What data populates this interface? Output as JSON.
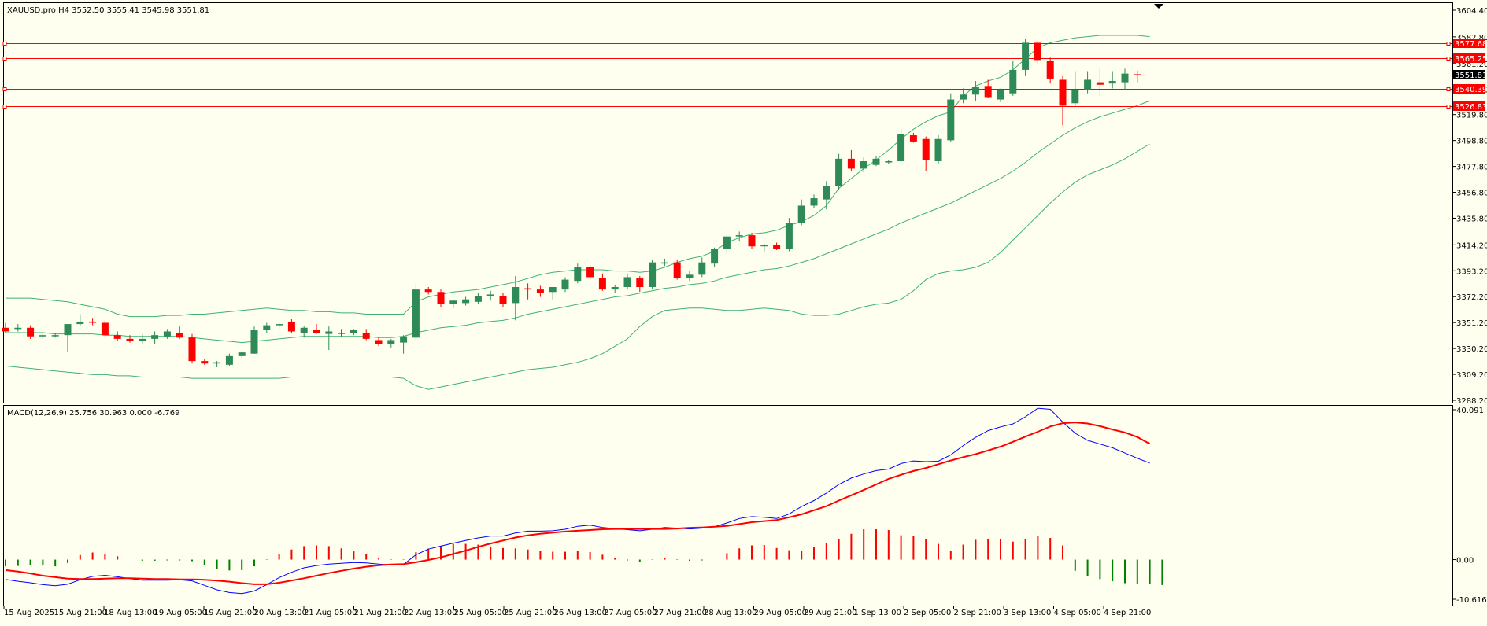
{
  "symbol_header": "XAUUSD.pro,H4  3552.50 3555.41 3545.98 3551.81",
  "macd_header": "MACD(12,26,9) 25.756 30.963 0.000 -6.769",
  "colors": {
    "background": "#fffff0",
    "bull_candle": "#2e8b57",
    "bear_candle": "#ff0000",
    "bollinger": "#3cb371",
    "hline": "#ff0000",
    "price_line": "#000000",
    "macd_line": "#0000ff",
    "signal_line": "#ff0000"
  },
  "chart_data": [
    {
      "type": "candlestick",
      "title": "XAUUSD.pro,H4",
      "price_axis_ticks": [
        "3604.40",
        "3582.80",
        "3561.20",
        "3540.40",
        "3519.80",
        "3498.80",
        "3477.80",
        "3456.80",
        "3435.80",
        "3414.20",
        "3393.20",
        "3372.20",
        "3351.20",
        "3330.20",
        "3309.20",
        "3288.20"
      ],
      "time_axis_labels": [
        "15 Aug 2025",
        "15 Aug 21:00",
        "18 Aug 13:00",
        "19 Aug 05:00",
        "19 Aug 21:00",
        "20 Aug 13:00",
        "21 Aug 05:00",
        "21 Aug 21:00",
        "22 Aug 13:00",
        "25 Aug 05:00",
        "25 Aug 21:00",
        "26 Aug 13:00",
        "27 Aug 05:00",
        "27 Aug 21:00",
        "28 Aug 13:00",
        "29 Aug 05:00",
        "29 Aug 21:00",
        "1 Sep 13:00",
        "2 Sep 05:00",
        "2 Sep 21:00",
        "3 Sep 13:00",
        "4 Sep 05:00",
        "4 Sep 21:00"
      ],
      "ylim": [
        3288.2,
        3604.4
      ],
      "candles": [
        {
          "o": 3347,
          "h": 3351,
          "l": 3343,
          "c": 3344
        },
        {
          "o": 3346,
          "h": 3350,
          "l": 3344,
          "c": 3347
        },
        {
          "o": 3347,
          "h": 3349,
          "l": 3338,
          "c": 3340
        },
        {
          "o": 3340,
          "h": 3344,
          "l": 3338,
          "c": 3341
        },
        {
          "o": 3341,
          "h": 3343,
          "l": 3339,
          "c": 3341
        },
        {
          "o": 3341,
          "h": 3349,
          "l": 3327,
          "c": 3350
        },
        {
          "o": 3350,
          "h": 3358,
          "l": 3348,
          "c": 3352
        },
        {
          "o": 3352,
          "h": 3355,
          "l": 3349,
          "c": 3351
        },
        {
          "o": 3351,
          "h": 3353,
          "l": 3339,
          "c": 3341
        },
        {
          "o": 3341,
          "h": 3344,
          "l": 3336,
          "c": 3338
        },
        {
          "o": 3338,
          "h": 3341,
          "l": 3335,
          "c": 3336
        },
        {
          "o": 3336,
          "h": 3342,
          "l": 3334,
          "c": 3338
        },
        {
          "o": 3338,
          "h": 3344,
          "l": 3334,
          "c": 3341
        },
        {
          "o": 3340,
          "h": 3346,
          "l": 3338,
          "c": 3344
        },
        {
          "o": 3343,
          "h": 3348,
          "l": 3338,
          "c": 3339
        },
        {
          "o": 3339,
          "h": 3342,
          "l": 3318,
          "c": 3320
        },
        {
          "o": 3320,
          "h": 3322,
          "l": 3317,
          "c": 3318
        },
        {
          "o": 3318,
          "h": 3320,
          "l": 3315,
          "c": 3319
        },
        {
          "o": 3317,
          "h": 3326,
          "l": 3316,
          "c": 3324
        },
        {
          "o": 3324,
          "h": 3328,
          "l": 3323,
          "c": 3327
        },
        {
          "o": 3326,
          "h": 3348,
          "l": 3326,
          "c": 3345
        },
        {
          "o": 3345,
          "h": 3351,
          "l": 3343,
          "c": 3349
        },
        {
          "o": 3349,
          "h": 3351,
          "l": 3346,
          "c": 3350
        },
        {
          "o": 3352,
          "h": 3354,
          "l": 3343,
          "c": 3344
        },
        {
          "o": 3343,
          "h": 3348,
          "l": 3339,
          "c": 3347
        },
        {
          "o": 3345,
          "h": 3350,
          "l": 3342,
          "c": 3343
        },
        {
          "o": 3342,
          "h": 3348,
          "l": 3329,
          "c": 3344
        },
        {
          "o": 3343,
          "h": 3346,
          "l": 3340,
          "c": 3342
        },
        {
          "o": 3343,
          "h": 3346,
          "l": 3341,
          "c": 3345
        },
        {
          "o": 3343,
          "h": 3346,
          "l": 3337,
          "c": 3338
        },
        {
          "o": 3337,
          "h": 3339,
          "l": 3332,
          "c": 3334
        },
        {
          "o": 3334,
          "h": 3338,
          "l": 3331,
          "c": 3337
        },
        {
          "o": 3335,
          "h": 3341,
          "l": 3326,
          "c": 3340
        },
        {
          "o": 3339,
          "h": 3383,
          "l": 3337,
          "c": 3378
        },
        {
          "o": 3378,
          "h": 3380,
          "l": 3374,
          "c": 3376
        },
        {
          "o": 3376,
          "h": 3378,
          "l": 3364,
          "c": 3366
        },
        {
          "o": 3366,
          "h": 3370,
          "l": 3363,
          "c": 3369
        },
        {
          "o": 3367,
          "h": 3372,
          "l": 3365,
          "c": 3370
        },
        {
          "o": 3368,
          "h": 3375,
          "l": 3366,
          "c": 3373
        },
        {
          "o": 3373,
          "h": 3377,
          "l": 3369,
          "c": 3374
        },
        {
          "o": 3373,
          "h": 3375,
          "l": 3364,
          "c": 3366
        },
        {
          "o": 3367,
          "h": 3389,
          "l": 3353,
          "c": 3380
        },
        {
          "o": 3379,
          "h": 3383,
          "l": 3370,
          "c": 3378
        },
        {
          "o": 3378,
          "h": 3381,
          "l": 3372,
          "c": 3375
        },
        {
          "o": 3376,
          "h": 3380,
          "l": 3370,
          "c": 3380
        },
        {
          "o": 3378,
          "h": 3388,
          "l": 3376,
          "c": 3386
        },
        {
          "o": 3385,
          "h": 3399,
          "l": 3383,
          "c": 3396
        },
        {
          "o": 3396,
          "h": 3398,
          "l": 3386,
          "c": 3388
        },
        {
          "o": 3387,
          "h": 3391,
          "l": 3377,
          "c": 3378
        },
        {
          "o": 3378,
          "h": 3382,
          "l": 3375,
          "c": 3380
        },
        {
          "o": 3380,
          "h": 3391,
          "l": 3378,
          "c": 3388
        },
        {
          "o": 3387,
          "h": 3389,
          "l": 3376,
          "c": 3380
        },
        {
          "o": 3380,
          "h": 3402,
          "l": 3378,
          "c": 3400
        },
        {
          "o": 3399,
          "h": 3403,
          "l": 3397,
          "c": 3400
        },
        {
          "o": 3400,
          "h": 3402,
          "l": 3386,
          "c": 3387
        },
        {
          "o": 3387,
          "h": 3393,
          "l": 3385,
          "c": 3390
        },
        {
          "o": 3390,
          "h": 3404,
          "l": 3388,
          "c": 3400
        },
        {
          "o": 3399,
          "h": 3412,
          "l": 3396,
          "c": 3411
        },
        {
          "o": 3411,
          "h": 3422,
          "l": 3407,
          "c": 3421
        },
        {
          "o": 3421,
          "h": 3425,
          "l": 3417,
          "c": 3422
        },
        {
          "o": 3422,
          "h": 3424,
          "l": 3411,
          "c": 3413
        },
        {
          "o": 3413,
          "h": 3415,
          "l": 3408,
          "c": 3414
        },
        {
          "o": 3414,
          "h": 3416,
          "l": 3410,
          "c": 3411
        },
        {
          "o": 3411,
          "h": 3436,
          "l": 3409,
          "c": 3432
        },
        {
          "o": 3432,
          "h": 3451,
          "l": 3430,
          "c": 3446
        },
        {
          "o": 3446,
          "h": 3455,
          "l": 3444,
          "c": 3452
        },
        {
          "o": 3451,
          "h": 3466,
          "l": 3443,
          "c": 3462
        },
        {
          "o": 3462,
          "h": 3488,
          "l": 3459,
          "c": 3484
        },
        {
          "o": 3484,
          "h": 3491,
          "l": 3474,
          "c": 3476
        },
        {
          "o": 3476,
          "h": 3485,
          "l": 3473,
          "c": 3482
        },
        {
          "o": 3479,
          "h": 3486,
          "l": 3478,
          "c": 3484
        },
        {
          "o": 3481,
          "h": 3483,
          "l": 3480,
          "c": 3482
        },
        {
          "o": 3482,
          "h": 3508,
          "l": 3481,
          "c": 3504
        },
        {
          "o": 3503,
          "h": 3505,
          "l": 3497,
          "c": 3498
        },
        {
          "o": 3500,
          "h": 3502,
          "l": 3474,
          "c": 3483
        },
        {
          "o": 3482,
          "h": 3503,
          "l": 3480,
          "c": 3500
        },
        {
          "o": 3499,
          "h": 3537,
          "l": 3498,
          "c": 3532
        },
        {
          "o": 3532,
          "h": 3541,
          "l": 3529,
          "c": 3536
        },
        {
          "o": 3536,
          "h": 3547,
          "l": 3531,
          "c": 3542
        },
        {
          "o": 3543,
          "h": 3548,
          "l": 3533,
          "c": 3534
        },
        {
          "o": 3532,
          "h": 3541,
          "l": 3530,
          "c": 3540
        },
        {
          "o": 3537,
          "h": 3563,
          "l": 3535,
          "c": 3556
        },
        {
          "o": 3556,
          "h": 3581,
          "l": 3551,
          "c": 3578
        },
        {
          "o": 3578,
          "h": 3580,
          "l": 3560,
          "c": 3564
        },
        {
          "o": 3563,
          "h": 3566,
          "l": 3545,
          "c": 3549
        },
        {
          "o": 3548,
          "h": 3551,
          "l": 3511,
          "c": 3527
        },
        {
          "o": 3529,
          "h": 3555,
          "l": 3526,
          "c": 3540
        },
        {
          "o": 3540,
          "h": 3555,
          "l": 3537,
          "c": 3548
        },
        {
          "o": 3546,
          "h": 3558,
          "l": 3535,
          "c": 3544
        },
        {
          "o": 3545,
          "h": 3555,
          "l": 3541,
          "c": 3547
        },
        {
          "o": 3546,
          "h": 3557,
          "l": 3540,
          "c": 3553
        },
        {
          "o": 3552.5,
          "h": 3555.41,
          "l": 3545.98,
          "c": 3551.81
        }
      ],
      "bollinger_upper": [
        3371,
        3371,
        3371,
        3370,
        3369,
        3368,
        3366,
        3364,
        3362,
        3358,
        3356,
        3356,
        3356,
        3357,
        3357,
        3358,
        3358,
        3359,
        3360,
        3361,
        3362,
        3363,
        3362,
        3361,
        3361,
        3360,
        3360,
        3359,
        3359,
        3358,
        3358,
        3358,
        3358,
        3368,
        3372,
        3374,
        3376,
        3377,
        3378,
        3380,
        3382,
        3384,
        3387,
        3390,
        3392,
        3393,
        3394,
        3394,
        3394,
        3393,
        3393,
        3392,
        3393,
        3396,
        3400,
        3403,
        3405,
        3409,
        3416,
        3420,
        3423,
        3424,
        3426,
        3430,
        3433,
        3438,
        3446,
        3460,
        3468,
        3476,
        3483,
        3491,
        3500,
        3508,
        3514,
        3519,
        3522,
        3535,
        3543,
        3547,
        3550,
        3556,
        3565,
        3574,
        3578,
        3580,
        3582,
        3583,
        3584,
        3584,
        3584,
        3584,
        3583
      ],
      "bollinger_middle": [
        3343,
        3343,
        3343,
        3343,
        3342,
        3342,
        3342,
        3342,
        3341,
        3341,
        3340,
        3340,
        3340,
        3340,
        3340,
        3339,
        3338,
        3337,
        3336,
        3335,
        3336,
        3337,
        3338,
        3339,
        3340,
        3340,
        3340,
        3340,
        3340,
        3340,
        3339,
        3339,
        3340,
        3343,
        3345,
        3347,
        3348,
        3349,
        3351,
        3352,
        3353,
        3355,
        3358,
        3360,
        3362,
        3364,
        3366,
        3368,
        3370,
        3372,
        3373,
        3375,
        3377,
        3379,
        3380,
        3382,
        3383,
        3385,
        3388,
        3390,
        3392,
        3394,
        3395,
        3397,
        3400,
        3403,
        3407,
        3411,
        3415,
        3419,
        3423,
        3427,
        3432,
        3436,
        3440,
        3444,
        3448,
        3453,
        3458,
        3463,
        3468,
        3474,
        3481,
        3489,
        3496,
        3503,
        3509,
        3514,
        3518,
        3521,
        3524,
        3527,
        3531
      ],
      "bollinger_lower": [
        3316,
        3315,
        3314,
        3313,
        3312,
        3311,
        3310,
        3309,
        3309,
        3308,
        3308,
        3307,
        3307,
        3307,
        3307,
        3306,
        3306,
        3306,
        3306,
        3306,
        3306,
        3306,
        3306,
        3307,
        3307,
        3307,
        3307,
        3307,
        3307,
        3307,
        3307,
        3307,
        3306,
        3300,
        3297,
        3299,
        3301,
        3303,
        3305,
        3307,
        3309,
        3311,
        3313,
        3314,
        3315,
        3317,
        3319,
        3322,
        3326,
        3332,
        3338,
        3348,
        3356,
        3361,
        3362,
        3363,
        3363,
        3362,
        3361,
        3361,
        3362,
        3363,
        3362,
        3361,
        3358,
        3357,
        3357,
        3358,
        3361,
        3364,
        3366,
        3367,
        3370,
        3377,
        3386,
        3391,
        3393,
        3394,
        3396,
        3400,
        3408,
        3418,
        3428,
        3438,
        3448,
        3457,
        3465,
        3471,
        3475,
        3479,
        3484,
        3490,
        3496
      ],
      "horizontal_levels": [
        "3577.68",
        "3565.25",
        "3540.39",
        "3526.83"
      ],
      "current_price": "3551.81"
    },
    {
      "type": "line+histogram",
      "title": "MACD(12,26,9)",
      "axis_ticks": [
        "40.091",
        "0.00",
        "-10.616"
      ],
      "ylim": [
        -10.616,
        40.091
      ],
      "values": {
        "macd": 25.756,
        "signal": 30.963,
        "histogram": 0.0,
        "last_bar": -6.769
      },
      "macd_line": [
        -5.3,
        -5.8,
        -6.2,
        -6.7,
        -7.0,
        -6.6,
        -5.4,
        -4.5,
        -4.2,
        -4.6,
        -5.1,
        -5.5,
        -5.5,
        -5.5,
        -5.4,
        -5.7,
        -6.9,
        -8.1,
        -8.8,
        -9.1,
        -8.4,
        -6.7,
        -4.8,
        -3.4,
        -2.2,
        -1.6,
        -1.2,
        -1.0,
        -0.8,
        -0.9,
        -1.2,
        -1.4,
        -1.3,
        1.3,
        2.8,
        3.6,
        4.4,
        5.1,
        5.8,
        6.3,
        6.3,
        7.1,
        7.6,
        7.6,
        7.7,
        8.1,
        8.9,
        9.2,
        8.6,
        8.3,
        8.0,
        7.7,
        8.1,
        8.6,
        8.4,
        8.2,
        8.4,
        8.8,
        9.8,
        11.0,
        11.5,
        11.3,
        11.0,
        12.2,
        14.2,
        15.8,
        17.8,
        20.1,
        21.8,
        22.9,
        23.8,
        24.2,
        25.7,
        26.4,
        26.2,
        26.3,
        28.0,
        30.5,
        32.7,
        34.5,
        35.5,
        36.3,
        38.2,
        40.5,
        40.2,
        36.8,
        33.8,
        31.9,
        30.9,
        29.9,
        28.5,
        27.1,
        25.8
      ],
      "signal_line": [
        -2.8,
        -3.2,
        -3.7,
        -4.3,
        -4.7,
        -5.1,
        -5.2,
        -5.2,
        -5.1,
        -5.0,
        -5.0,
        -5.1,
        -5.2,
        -5.2,
        -5.3,
        -5.3,
        -5.4,
        -5.6,
        -5.9,
        -6.3,
        -6.6,
        -6.6,
        -6.2,
        -5.6,
        -5.0,
        -4.3,
        -3.6,
        -3.0,
        -2.4,
        -1.9,
        -1.5,
        -1.3,
        -1.2,
        -0.7,
        -0.1,
        0.6,
        1.5,
        2.4,
        3.4,
        4.3,
        5.1,
        5.9,
        6.5,
        6.9,
        7.2,
        7.5,
        7.7,
        7.9,
        8.1,
        8.2,
        8.2,
        8.2,
        8.2,
        8.2,
        8.3,
        8.5,
        8.6,
        8.8,
        9.0,
        9.5,
        10.0,
        10.3,
        10.6,
        11.3,
        12.1,
        13.2,
        14.3,
        15.8,
        17.2,
        18.6,
        20.1,
        21.6,
        22.7,
        23.7,
        24.5,
        25.5,
        26.5,
        27.4,
        28.2,
        29.2,
        30.2,
        31.5,
        32.9,
        34.2,
        35.6,
        36.5,
        36.7,
        36.4,
        35.7,
        34.8,
        34.0,
        32.8,
        30.96
      ],
      "histogram": [
        -1.8,
        -1.7,
        -1.5,
        -1.6,
        -1.8,
        -0.9,
        1.2,
        1.9,
        1.6,
        0.9,
        0.0,
        -0.3,
        -0.3,
        -0.2,
        -0.2,
        -0.4,
        -1.4,
        -2.5,
        -2.9,
        -2.8,
        -1.8,
        -0.1,
        1.4,
        2.7,
        3.6,
        3.8,
        3.6,
        3.0,
        2.2,
        1.4,
        0.3,
        -0.1,
        -0.1,
        2.0,
        2.9,
        3.7,
        4.2,
        4.2,
        4.0,
        3.5,
        3.1,
        3.0,
        2.7,
        2.3,
        2.1,
        2.1,
        2.3,
        2.0,
        1.3,
        0.5,
        -0.2,
        -0.5,
        -0.1,
        0.4,
        0.1,
        -0.3,
        -0.2,
        0.0,
        1.7,
        3.0,
        3.8,
        3.9,
        3.1,
        2.5,
        2.4,
        3.4,
        4.4,
        5.5,
        6.9,
        8.1,
        8.1,
        7.9,
        6.5,
        6.3,
        5.4,
        4.2,
        2.4,
        4.0,
        5.3,
        5.6,
        5.4,
        4.8,
        5.4,
        6.3,
        5.8,
        3.8,
        -3.0,
        -4.3,
        -5.2,
        -5.8,
        -6.3,
        -6.6,
        -6.6,
        -6.8
      ]
    }
  ]
}
